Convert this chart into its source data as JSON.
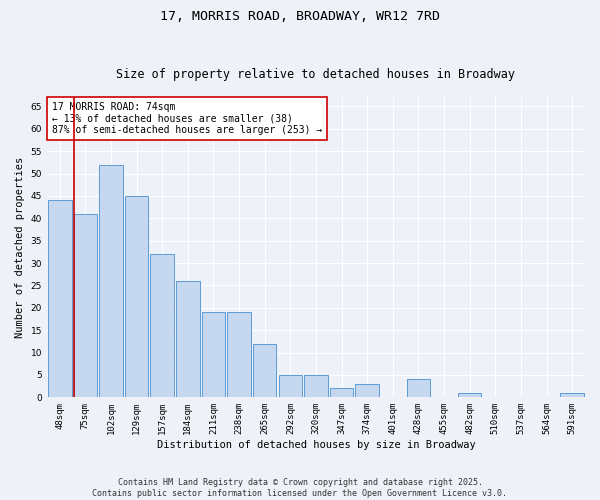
{
  "title": "17, MORRIS ROAD, BROADWAY, WR12 7RD",
  "subtitle": "Size of property relative to detached houses in Broadway",
  "xlabel": "Distribution of detached houses by size in Broadway",
  "ylabel": "Number of detached properties",
  "categories": [
    "48sqm",
    "75sqm",
    "102sqm",
    "129sqm",
    "157sqm",
    "184sqm",
    "211sqm",
    "238sqm",
    "265sqm",
    "292sqm",
    "320sqm",
    "347sqm",
    "374sqm",
    "401sqm",
    "428sqm",
    "455sqm",
    "482sqm",
    "510sqm",
    "537sqm",
    "564sqm",
    "591sqm"
  ],
  "values": [
    44,
    41,
    52,
    45,
    32,
    26,
    19,
    19,
    12,
    5,
    5,
    2,
    3,
    0,
    4,
    0,
    1,
    0,
    0,
    0,
    1
  ],
  "bar_color": "#c5d8f0",
  "bar_edge_color": "#5b9bd5",
  "property_line_index": 1,
  "property_label": "17 MORRIS ROAD: 74sqm",
  "annotation_line1": "← 13% of detached houses are smaller (38)",
  "annotation_line2": "87% of semi-detached houses are larger (253) →",
  "annotation_box_color": "#ffffff",
  "annotation_box_edge": "#cc0000",
  "red_line_color": "#cc0000",
  "ylim": [
    0,
    67
  ],
  "yticks": [
    0,
    5,
    10,
    15,
    20,
    25,
    30,
    35,
    40,
    45,
    50,
    55,
    60,
    65
  ],
  "background_color": "#eef2f8",
  "grid_color": "#ffffff",
  "footer_line1": "Contains HM Land Registry data © Crown copyright and database right 2025.",
  "footer_line2": "Contains public sector information licensed under the Open Government Licence v3.0.",
  "title_fontsize": 9.5,
  "subtitle_fontsize": 8.5,
  "axis_label_fontsize": 7.5,
  "tick_fontsize": 6.5,
  "annotation_fontsize": 7,
  "footer_fontsize": 6
}
